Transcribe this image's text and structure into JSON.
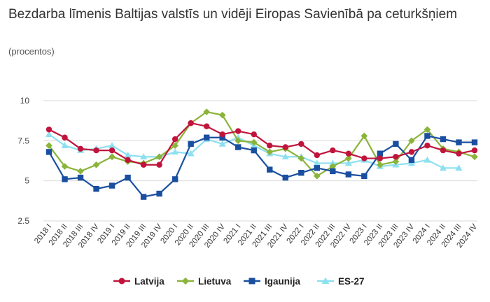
{
  "chart_data": {
    "type": "line",
    "title": "Bezdarba līmenis Baltijas valstīs un vidēji Eiropas Savienībā pa ceturkšņiem",
    "subtitle": "(procentos)",
    "xlabel": "",
    "ylabel": "",
    "ylim": [
      2.5,
      10
    ],
    "yticks": [
      "2.5",
      "5",
      "7.5",
      "10"
    ],
    "grid": true,
    "legend": "bottom",
    "categories": [
      "2018 I",
      "2018 II",
      "2018 III",
      "2018 IV",
      "2019 I",
      "2019 II",
      "2019 III",
      "2019 IV",
      "2020 I",
      "2020 II",
      "2020 III",
      "2020 IV",
      "2021 I",
      "2021 II",
      "2021 III",
      "2021 IV",
      "2022 I",
      "2022 II",
      "2022 III",
      "2022 IV",
      "2023 I",
      "2023 II",
      "2023 III",
      "2023 IV",
      "2024 I",
      "2024 II",
      "2024 III",
      "2024 IV"
    ],
    "series": [
      {
        "name": "Latvija",
        "color": "#c0143c",
        "marker": "circle",
        "values": [
          8.2,
          7.7,
          7.0,
          6.9,
          6.9,
          6.3,
          6.0,
          6.0,
          7.6,
          8.6,
          8.4,
          7.9,
          8.1,
          7.9,
          7.2,
          7.1,
          7.3,
          6.6,
          6.9,
          6.7,
          6.4,
          6.4,
          6.5,
          6.8,
          7.2,
          6.9,
          6.7,
          6.9
        ]
      },
      {
        "name": "Lietuva",
        "color": "#8ab43a",
        "marker": "diamond",
        "values": [
          7.2,
          5.9,
          5.6,
          6.0,
          6.5,
          6.2,
          6.1,
          6.5,
          7.2,
          8.6,
          9.3,
          9.1,
          7.5,
          7.4,
          6.8,
          7.0,
          6.4,
          5.3,
          5.9,
          6.4,
          7.8,
          6.0,
          6.2,
          7.5,
          8.2,
          7.0,
          6.8,
          6.5
        ]
      },
      {
        "name": "Igaunija",
        "color": "#1a4fa0",
        "marker": "square",
        "values": [
          6.8,
          5.1,
          5.2,
          4.5,
          4.7,
          5.2,
          4.0,
          4.2,
          5.1,
          7.3,
          7.7,
          7.7,
          7.1,
          6.9,
          5.7,
          5.2,
          5.5,
          5.8,
          5.6,
          5.4,
          5.3,
          6.7,
          7.3,
          6.3,
          7.8,
          7.6,
          7.4,
          7.4
        ]
      },
      {
        "name": "ES-27",
        "color": "#8de0f0",
        "marker": "triangle",
        "values": [
          7.9,
          7.2,
          6.9,
          7.0,
          7.2,
          6.6,
          6.5,
          6.5,
          6.8,
          6.7,
          7.6,
          7.3,
          7.7,
          7.2,
          6.7,
          6.5,
          6.5,
          6.1,
          6.1,
          6.1,
          6.3,
          5.9,
          6.0,
          6.1,
          6.3,
          5.8,
          5.8,
          null
        ]
      }
    ]
  }
}
